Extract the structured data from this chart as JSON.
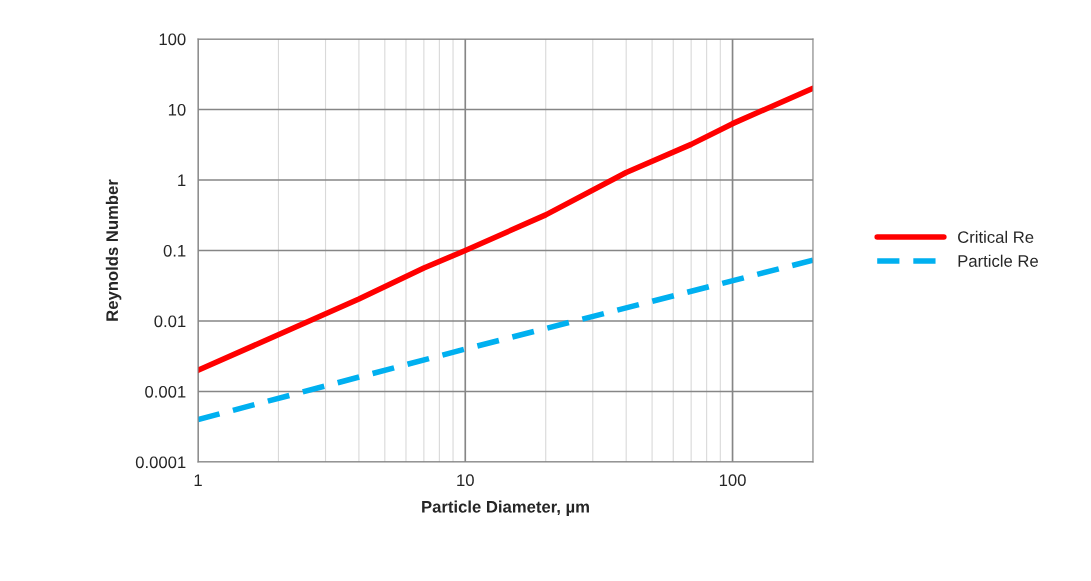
{
  "chart_data": {
    "type": "line",
    "xlabel": "Particle Diameter, µm",
    "ylabel": "Reynolds Number",
    "log": "xy",
    "xlim": [
      1,
      200
    ],
    "xticks": [
      1,
      10,
      100
    ],
    "ylim": [
      0.0001,
      100
    ],
    "yticks": [
      0.0001,
      0.001,
      0.01,
      0.1,
      1,
      10,
      100
    ],
    "grid": true,
    "legend": "right",
    "marker": "none",
    "series": [
      {
        "name": "Critical Re",
        "color": "#ff0000",
        "line_style": "solid",
        "x": [
          1,
          4,
          7,
          10,
          20,
          40,
          70,
          100,
          200
        ],
        "values": [
          0.002,
          0.0205,
          0.0565,
          0.1,
          0.32,
          1.28,
          3.2,
          6.3,
          20
        ]
      },
      {
        "name": "Particle Re",
        "color": "#00b0f0",
        "line_style": "dashed",
        "x": [
          1,
          10,
          200
        ],
        "values": [
          0.0004,
          0.004,
          0.073
        ]
      }
    ]
  }
}
